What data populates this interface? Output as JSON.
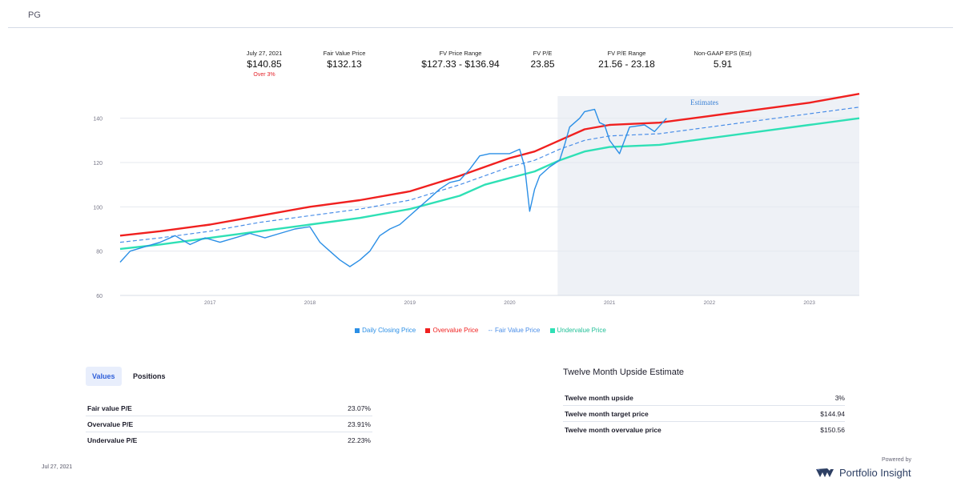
{
  "ticker": "PG",
  "stats": [
    {
      "label": "July 27, 2021",
      "value": "$140.85",
      "sub": "Over 3%"
    },
    {
      "label": "Fair Value Price",
      "value": "$132.13"
    },
    {
      "label": "FV Price Range",
      "value": "$127.33  - $136.94"
    },
    {
      "label": "FV P/E",
      "value": "23.85"
    },
    {
      "label": "FV P/E Range",
      "value": "21.56  - 23.18"
    },
    {
      "label": "Non-GAAP EPS (Est)",
      "value": "5.91"
    }
  ],
  "colors": {
    "daily": "#2b8fe6",
    "overvalue": "#f0201f",
    "fair": "#4a8ee8",
    "undervalue": "#2fe0b5",
    "estimates_bg": "#eef1f6",
    "subtext_red": "#e3242b"
  },
  "chart_data": {
    "type": "line",
    "annotation": "Estimates",
    "estimates_start": 2020.48,
    "xlim": [
      2016.1,
      2023.5
    ],
    "ylim": [
      60,
      150
    ],
    "yticks": [
      60,
      80,
      100,
      120,
      140
    ],
    "xticks": [
      "2017",
      "2018",
      "2019",
      "2020",
      "2021",
      "2022",
      "2023"
    ],
    "grid": true,
    "legend_position": "bottom",
    "series": [
      {
        "name": "Daily Closing Price",
        "marker": "square",
        "points": [
          [
            2016.1,
            75
          ],
          [
            2016.2,
            80
          ],
          [
            2016.35,
            82
          ],
          [
            2016.5,
            84
          ],
          [
            2016.65,
            87
          ],
          [
            2016.8,
            83
          ],
          [
            2016.95,
            86
          ],
          [
            2017.1,
            84
          ],
          [
            2017.25,
            86
          ],
          [
            2017.4,
            88
          ],
          [
            2017.55,
            86
          ],
          [
            2017.7,
            88
          ],
          [
            2017.85,
            90
          ],
          [
            2018.0,
            91
          ],
          [
            2018.1,
            84
          ],
          [
            2018.2,
            80
          ],
          [
            2018.3,
            76
          ],
          [
            2018.4,
            73
          ],
          [
            2018.5,
            76
          ],
          [
            2018.6,
            80
          ],
          [
            2018.7,
            87
          ],
          [
            2018.8,
            90
          ],
          [
            2018.9,
            92
          ],
          [
            2019.0,
            96
          ],
          [
            2019.1,
            100
          ],
          [
            2019.2,
            104
          ],
          [
            2019.3,
            108
          ],
          [
            2019.4,
            111
          ],
          [
            2019.5,
            112
          ],
          [
            2019.6,
            117
          ],
          [
            2019.7,
            123
          ],
          [
            2019.8,
            124
          ],
          [
            2019.9,
            124
          ],
          [
            2020.0,
            124
          ],
          [
            2020.1,
            126
          ],
          [
            2020.15,
            118
          ],
          [
            2020.2,
            98
          ],
          [
            2020.25,
            108
          ],
          [
            2020.3,
            114
          ],
          [
            2020.4,
            118
          ],
          [
            2020.5,
            121
          ],
          [
            2020.55,
            128
          ],
          [
            2020.6,
            136
          ],
          [
            2020.7,
            140
          ],
          [
            2020.75,
            143
          ],
          [
            2020.85,
            144
          ],
          [
            2020.9,
            138
          ],
          [
            2020.95,
            137
          ],
          [
            2021.0,
            130
          ],
          [
            2021.1,
            124
          ],
          [
            2021.2,
            136
          ],
          [
            2021.35,
            137
          ],
          [
            2021.45,
            134
          ],
          [
            2021.57,
            140
          ]
        ]
      },
      {
        "name": "Overvalue Price",
        "marker": "square",
        "points": [
          [
            2016.1,
            87
          ],
          [
            2016.5,
            89
          ],
          [
            2017.0,
            92
          ],
          [
            2017.5,
            96
          ],
          [
            2018.0,
            100
          ],
          [
            2018.5,
            103
          ],
          [
            2019.0,
            107
          ],
          [
            2019.5,
            114
          ],
          [
            2019.75,
            118
          ],
          [
            2020.0,
            122
          ],
          [
            2020.25,
            125
          ],
          [
            2020.5,
            130
          ],
          [
            2020.75,
            135
          ],
          [
            2021.0,
            137
          ],
          [
            2021.5,
            138
          ],
          [
            2022.0,
            141
          ],
          [
            2022.5,
            144
          ],
          [
            2023.0,
            147
          ],
          [
            2023.5,
            151
          ]
        ]
      },
      {
        "name": "Fair Value Price",
        "marker": "dash",
        "points": [
          [
            2016.1,
            84
          ],
          [
            2016.5,
            86
          ],
          [
            2017.0,
            89
          ],
          [
            2017.5,
            93
          ],
          [
            2018.0,
            96
          ],
          [
            2018.5,
            99
          ],
          [
            2019.0,
            103
          ],
          [
            2019.5,
            110
          ],
          [
            2019.75,
            114
          ],
          [
            2020.0,
            118
          ],
          [
            2020.25,
            121
          ],
          [
            2020.5,
            126
          ],
          [
            2020.75,
            130
          ],
          [
            2021.0,
            132
          ],
          [
            2021.5,
            133
          ],
          [
            2022.0,
            136
          ],
          [
            2022.5,
            139
          ],
          [
            2023.0,
            142
          ],
          [
            2023.5,
            145
          ]
        ]
      },
      {
        "name": "Undervalue Price",
        "marker": "square",
        "points": [
          [
            2016.1,
            81
          ],
          [
            2016.5,
            83
          ],
          [
            2017.0,
            86
          ],
          [
            2017.5,
            89
          ],
          [
            2018.0,
            92
          ],
          [
            2018.5,
            95
          ],
          [
            2019.0,
            99
          ],
          [
            2019.5,
            105
          ],
          [
            2019.75,
            110
          ],
          [
            2020.0,
            113
          ],
          [
            2020.25,
            116
          ],
          [
            2020.5,
            121
          ],
          [
            2020.75,
            125
          ],
          [
            2021.0,
            127
          ],
          [
            2021.5,
            128
          ],
          [
            2022.0,
            131
          ],
          [
            2022.5,
            134
          ],
          [
            2023.0,
            137
          ],
          [
            2023.5,
            140
          ]
        ]
      }
    ]
  },
  "tabs": [
    {
      "label": "Values",
      "active": true
    },
    {
      "label": "Positions",
      "active": false
    }
  ],
  "values_table": [
    {
      "label": "Fair value P/E",
      "value": "23.07%"
    },
    {
      "label": "Overvalue P/E",
      "value": "23.91%"
    },
    {
      "label": "Undervalue P/E",
      "value": "22.23%"
    }
  ],
  "upside": {
    "title": "Twelve Month Upside Estimate",
    "rows": [
      {
        "label": "Twelve month upside",
        "value": "3%"
      },
      {
        "label": "Twelve month target price",
        "value": "$144.94"
      },
      {
        "label": "Twelve month overvalue price",
        "value": "$150.56"
      }
    ]
  },
  "footer": {
    "date": "Jul 27, 2021",
    "powered_by": "Powered by",
    "brand": "Portfolio Insight",
    "brand_icon": "portfolio-insight-logo-icon"
  }
}
